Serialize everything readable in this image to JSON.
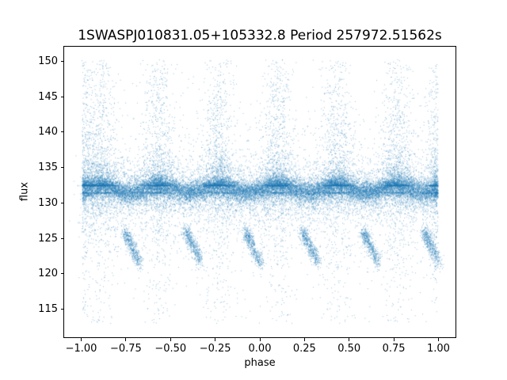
{
  "chart_data": {
    "type": "scatter",
    "title": "1SWASPJ010831.05+105332.8 Period 257972.51562s",
    "xlabel": "phase",
    "ylabel": "flux",
    "xlim": [
      -1.1,
      1.1
    ],
    "ylim": [
      110.9,
      152.2
    ],
    "x_data_range": [
      -1.0,
      1.0
    ],
    "flux_data_range": [
      112.8,
      150.4
    ],
    "grid": false,
    "legend": null,
    "marker_color": "#1f77b4",
    "marker_alpha": 0.45,
    "seed": 1337,
    "xticks": [
      {
        "value": -1.0,
        "label": "−1.00"
      },
      {
        "value": -0.75,
        "label": "−0.75"
      },
      {
        "value": -0.5,
        "label": "−0.50"
      },
      {
        "value": -0.25,
        "label": "−0.25"
      },
      {
        "value": 0.0,
        "label": "0.00"
      },
      {
        "value": 0.25,
        "label": "0.25"
      },
      {
        "value": 0.5,
        "label": "0.50"
      },
      {
        "value": 0.75,
        "label": "0.75"
      },
      {
        "value": 1.0,
        "label": "1.00"
      }
    ],
    "yticks": [
      {
        "value": 115,
        "label": "115"
      },
      {
        "value": 120,
        "label": "120"
      },
      {
        "value": 125,
        "label": "125"
      },
      {
        "value": 130,
        "label": "130"
      },
      {
        "value": 135,
        "label": "135"
      },
      {
        "value": 140,
        "label": "140"
      },
      {
        "value": 145,
        "label": "145"
      },
      {
        "value": 150,
        "label": "150"
      }
    ],
    "description": "Phase-folded SuperWASP light curve plotted over two cycles (phase -1 to 1). Dense horizontal band near flux 132 with flare-like vertical columns rising to ~150 at phases ~0.10, 0.43, 0.77 (and their -1 copies at -0.90, -0.57, -0.23) and at the phase edges +/-1.0; sparse downward outliers reach flux ~113; detached diagonal fading streak clumps between flux ~120 and ~126 occur at phases ~0.24, 0.58, 0.92 (and -0.76, -0.42, -0.08).",
    "components": [
      {
        "kind": "band",
        "count": 15000,
        "mean": 132.0,
        "sd": 0.7,
        "wave_amp": 0.45,
        "wave_freq": 3,
        "wave_x0": 0.1
      },
      {
        "kind": "band",
        "count": 6000,
        "mean": 131.8,
        "sd": 1.8,
        "wave_amp": 0.45,
        "wave_freq": 3,
        "wave_x0": 0.1
      },
      {
        "kind": "halo",
        "count": 2200,
        "mean": 132.0,
        "sd": 4.0,
        "ymin": 112.8,
        "ymax": 150.4
      },
      {
        "kind": "halo",
        "count": 900,
        "mean": 132.0,
        "sd": 9.0,
        "ymin": 112.8,
        "ymax": 150.4
      },
      {
        "kind": "flare",
        "phases": [
          -0.9,
          -0.57,
          -0.23,
          0.1,
          0.43,
          0.77
        ],
        "count_per": 1100,
        "xsd": 0.045,
        "ymin": 132.5,
        "ymax": 150.4,
        "power": 4
      },
      {
        "kind": "flare",
        "phases": [
          -1.0,
          1.0
        ],
        "count_per": 500,
        "xsd": 0.03,
        "ymin": 132.5,
        "ymax": 150.0,
        "power": 4
      },
      {
        "kind": "drop",
        "phases": [
          -0.9,
          -0.57,
          -0.23,
          0.1,
          0.43,
          0.77
        ],
        "count_per": 420,
        "xsd": 0.05,
        "ymin": 112.9,
        "ymax": 131.5,
        "power": 4
      },
      {
        "kind": "drop",
        "phases": [
          -1.0,
          1.0
        ],
        "count_per": 200,
        "xsd": 0.03,
        "ymin": 113.0,
        "ymax": 131.5,
        "power": 4
      },
      {
        "kind": "streak",
        "count_per": 550,
        "specs": [
          {
            "x0": -0.76,
            "y0": 125.9,
            "dx": 0.085,
            "dy": -4.6
          },
          {
            "x0": -0.42,
            "y0": 126.1,
            "dx": 0.085,
            "dy": -4.4
          },
          {
            "x0": -0.08,
            "y0": 125.8,
            "dx": 0.085,
            "dy": -4.5
          },
          {
            "x0": 0.24,
            "y0": 126.0,
            "dx": 0.085,
            "dy": -4.6
          },
          {
            "x0": 0.58,
            "y0": 125.9,
            "dx": 0.085,
            "dy": -4.4
          },
          {
            "x0": 0.92,
            "y0": 126.0,
            "dx": 0.085,
            "dy": -4.5
          }
        ]
      }
    ]
  }
}
